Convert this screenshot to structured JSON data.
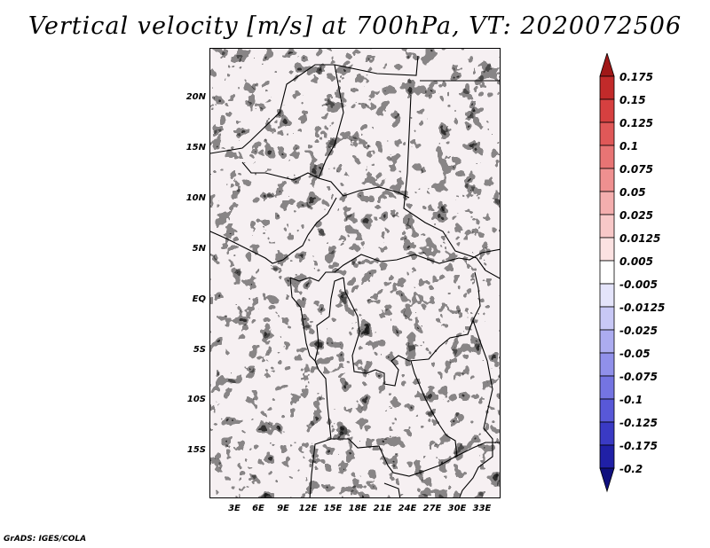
{
  "title": "Vertical velocity [m/s] at 700hPa, VT: 2020072506",
  "credit": "GrADS: IGES/COLA",
  "map": {
    "lon_range": [
      0,
      36
    ],
    "lat_range": [
      -20,
      25
    ],
    "lat_labels": [
      "20N",
      "15N",
      "10N",
      "5N",
      "EQ",
      "5S",
      "10S",
      "15S"
    ],
    "lat_values": [
      20,
      15,
      10,
      5,
      0,
      -5,
      -10,
      -15
    ],
    "lon_labels": [
      "3E",
      "6E",
      "9E",
      "12E",
      "15E",
      "18E",
      "21E",
      "24E",
      "27E",
      "30E",
      "33E"
    ],
    "lon_values": [
      3,
      6,
      9,
      12,
      15,
      18,
      21,
      24,
      27,
      30,
      33
    ]
  },
  "colorbar": {
    "labels": [
      "0.175",
      "0.15",
      "0.125",
      "0.1",
      "0.075",
      "0.05",
      "0.025",
      "0.0125",
      "0.005",
      "-0.005",
      "-0.0125",
      "-0.025",
      "-0.05",
      "-0.075",
      "-0.1",
      "-0.125",
      "-0.175",
      "-0.2"
    ],
    "colors": [
      "#a01818",
      "#c22a2a",
      "#d64040",
      "#e05858",
      "#e87474",
      "#ef9090",
      "#f4aeae",
      "#f8c8c8",
      "#fce2e2",
      "#ffffff",
      "#e4e4fb",
      "#c8c8f6",
      "#acacf0",
      "#9090ea",
      "#7474e2",
      "#5858d8",
      "#3a3ac4",
      "#2020a6",
      "#10107e"
    ]
  }
}
